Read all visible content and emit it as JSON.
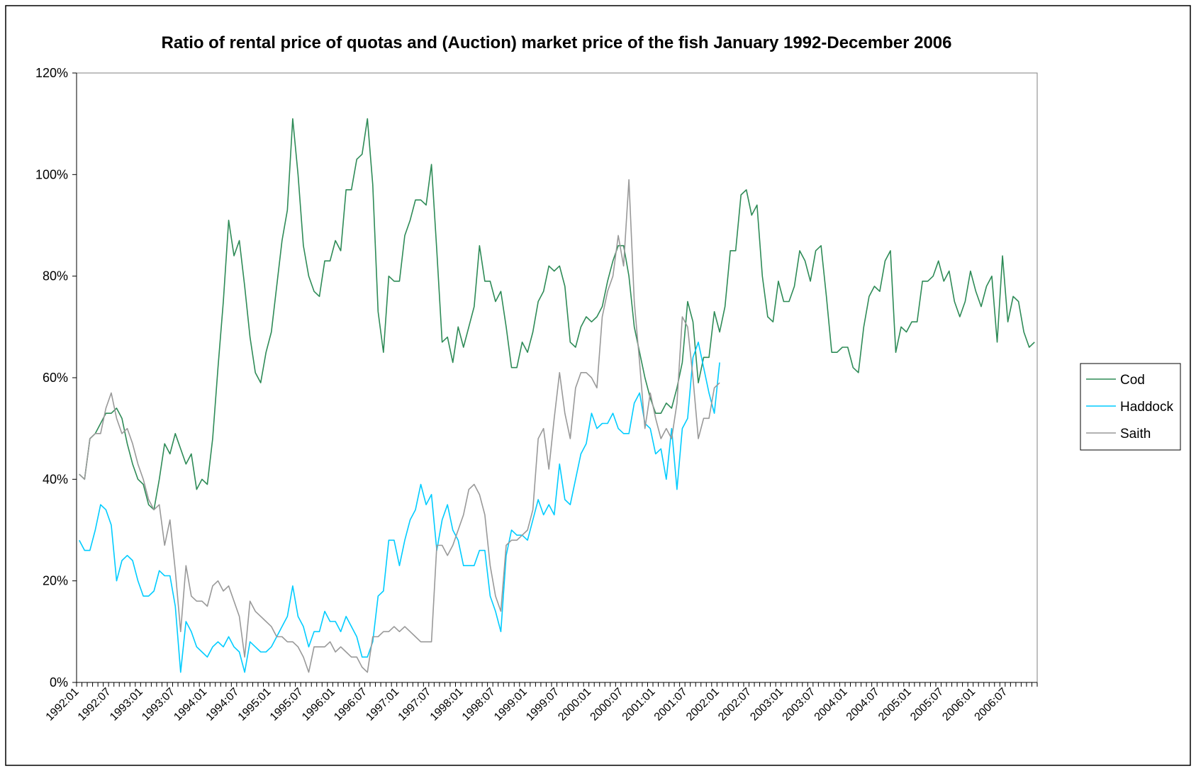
{
  "chart_data": {
    "type": "line",
    "title": "Ratio of rental price of quotas and (Auction) market price of the fish January 1992-December 2006",
    "categories": [
      "1992:01",
      null,
      null,
      null,
      null,
      null,
      "1992:07",
      null,
      null,
      null,
      null,
      null,
      "1993:01",
      null,
      null,
      null,
      null,
      null,
      "1993:07",
      null,
      null,
      null,
      null,
      null,
      "1994:01",
      null,
      null,
      null,
      null,
      null,
      "1994:07",
      null,
      null,
      null,
      null,
      null,
      "1995:01",
      null,
      null,
      null,
      null,
      null,
      "1995:07",
      null,
      null,
      null,
      null,
      null,
      "1996:01",
      null,
      null,
      null,
      null,
      null,
      "1996:07",
      null,
      null,
      null,
      null,
      null,
      "1997:01",
      null,
      null,
      null,
      null,
      null,
      "1997:07",
      null,
      null,
      null,
      null,
      null,
      "1998:01",
      null,
      null,
      null,
      null,
      null,
      "1998:07",
      null,
      null,
      null,
      null,
      null,
      "1999:01",
      null,
      null,
      null,
      null,
      null,
      "1999:07",
      null,
      null,
      null,
      null,
      null,
      "2000:01",
      null,
      null,
      null,
      null,
      null,
      "2000:07",
      null,
      null,
      null,
      null,
      null,
      "2001:01",
      null,
      null,
      null,
      null,
      null,
      "2001:07",
      null,
      null,
      null,
      null,
      null,
      "2002:01",
      null,
      null,
      null,
      null,
      null,
      "2002:07",
      null,
      null,
      null,
      null,
      null,
      "2003:01",
      null,
      null,
      null,
      null,
      null,
      "2003:07",
      null,
      null,
      null,
      null,
      null,
      "2004:01",
      null,
      null,
      null,
      null,
      null,
      "2004:07",
      null,
      null,
      null,
      null,
      null,
      "2005:01",
      null,
      null,
      null,
      null,
      null,
      "2005:07",
      null,
      null,
      null,
      null,
      null,
      "2006:01",
      null,
      null,
      null,
      null,
      null,
      "2006:07",
      null,
      null,
      null,
      null,
      null
    ],
    "series": [
      {
        "name": "Cod",
        "color": "#2e8b57",
        "values": [
          41,
          40,
          48,
          49,
          51,
          53,
          53,
          54,
          52,
          47,
          43,
          40,
          39,
          35,
          34,
          40,
          47,
          45,
          49,
          46,
          43,
          45,
          38,
          40,
          39,
          48,
          62,
          75,
          91,
          84,
          87,
          78,
          68,
          61,
          59,
          65,
          69,
          78,
          87,
          93,
          111,
          100,
          86,
          80,
          77,
          76,
          83,
          83,
          87,
          85,
          97,
          97,
          103,
          104,
          111,
          98,
          73,
          65,
          80,
          79,
          79,
          88,
          91,
          95,
          95,
          94,
          102,
          85,
          67,
          68,
          63,
          70,
          66,
          70,
          74,
          86,
          79,
          79,
          75,
          77,
          70,
          62,
          62,
          67,
          65,
          69,
          75,
          77,
          82,
          81,
          82,
          78,
          67,
          66,
          70,
          72,
          71,
          72,
          74,
          79,
          83,
          86,
          86,
          80,
          70,
          65,
          60,
          56,
          53,
          53,
          55,
          54,
          58,
          63,
          75,
          71,
          59,
          64,
          64,
          73,
          69,
          74,
          85,
          85,
          96,
          97,
          92,
          94,
          80,
          72,
          71,
          79,
          75,
          75,
          78,
          85,
          83,
          79,
          85,
          86,
          76,
          65,
          65,
          66,
          66,
          62,
          61,
          70,
          76,
          78,
          77,
          83,
          85,
          65,
          70,
          69,
          71,
          71,
          79,
          79,
          80,
          83,
          79,
          81,
          75,
          72,
          75,
          81,
          77,
          74,
          78,
          80,
          67,
          84,
          71,
          76,
          75,
          69,
          66,
          67
        ]
      },
      {
        "name": "Haddock",
        "color": "#00ccff",
        "values": [
          28,
          26,
          26,
          30,
          35,
          34,
          31,
          20,
          24,
          25,
          24,
          20,
          17,
          17,
          18,
          22,
          21,
          21,
          15,
          2,
          12,
          10,
          7,
          6,
          5,
          7,
          8,
          7,
          9,
          7,
          6,
          2,
          8,
          7,
          6,
          6,
          7,
          9,
          11,
          13,
          19,
          13,
          11,
          7,
          10,
          10,
          14,
          12,
          12,
          10,
          13,
          11,
          9,
          5,
          5,
          8,
          17,
          18,
          28,
          28,
          23,
          28,
          32,
          34,
          39,
          35,
          37,
          26,
          32,
          35,
          30,
          28,
          23,
          23,
          23,
          26,
          26,
          17,
          14,
          10,
          25,
          30,
          29,
          29,
          28,
          32,
          36,
          33,
          35,
          33,
          43,
          36,
          35,
          40,
          45,
          47,
          53,
          50,
          51,
          51,
          53,
          50,
          49,
          49,
          55,
          57,
          51,
          50,
          45,
          46,
          40,
          50,
          38,
          50,
          52,
          64,
          67,
          62,
          57,
          53,
          63,
          null,
          null,
          null,
          null,
          null,
          null,
          null,
          null,
          null,
          null,
          null,
          null,
          null,
          null,
          null,
          null,
          null,
          null,
          null,
          null,
          null,
          null,
          null,
          null,
          null,
          null,
          null,
          null,
          null,
          null,
          null,
          null,
          null,
          null,
          null,
          null,
          null,
          null,
          null,
          null,
          null,
          null,
          null,
          null,
          null,
          null,
          null,
          null,
          null,
          null,
          null,
          null,
          null,
          null,
          null,
          null,
          null,
          null,
          null
        ]
      },
      {
        "name": "Saith",
        "color": "#999999",
        "values": [
          41,
          40,
          48,
          49,
          49,
          54,
          57,
          52,
          49,
          50,
          47,
          43,
          40,
          36,
          34,
          35,
          27,
          32,
          22,
          10,
          23,
          17,
          16,
          16,
          15,
          19,
          20,
          18,
          19,
          16,
          13,
          5,
          16,
          14,
          13,
          12,
          11,
          9,
          9,
          8,
          8,
          7,
          5,
          2,
          7,
          7,
          7,
          8,
          6,
          7,
          6,
          5,
          5,
          3,
          2,
          9,
          9,
          10,
          10,
          11,
          10,
          11,
          10,
          9,
          8,
          8,
          8,
          27,
          27,
          25,
          27,
          30,
          33,
          38,
          39,
          37,
          33,
          23,
          17,
          14,
          27,
          28,
          28,
          29,
          30,
          34,
          48,
          50,
          42,
          52,
          61,
          53,
          48,
          58,
          61,
          61,
          60,
          58,
          72,
          77,
          80,
          88,
          82,
          99,
          75,
          63,
          50,
          57,
          52,
          48,
          50,
          48,
          55,
          72,
          70,
          60,
          48,
          52,
          52,
          58,
          59,
          null,
          null,
          null,
          null,
          null,
          null,
          null,
          null,
          null,
          null,
          null,
          null,
          null,
          null,
          null,
          null,
          null,
          null,
          null,
          null,
          null,
          null,
          null,
          null,
          null,
          null,
          null,
          null,
          null,
          null,
          null,
          null,
          null,
          null,
          null,
          null,
          null,
          null,
          null,
          null,
          null,
          null,
          null,
          null,
          null,
          null,
          null,
          null,
          null,
          null,
          null,
          null,
          null,
          null,
          null,
          null,
          null,
          null,
          null
        ]
      }
    ],
    "ylim": [
      0,
      120
    ],
    "yticks": [
      {
        "value": 0,
        "label": "0%"
      },
      {
        "value": 20,
        "label": "20%"
      },
      {
        "value": 40,
        "label": "40%"
      },
      {
        "value": 60,
        "label": "60%"
      },
      {
        "value": 80,
        "label": "80%"
      },
      {
        "value": 100,
        "label": "100%"
      },
      {
        "value": 120,
        "label": "120%"
      }
    ],
    "grid": false,
    "legend": "right"
  }
}
